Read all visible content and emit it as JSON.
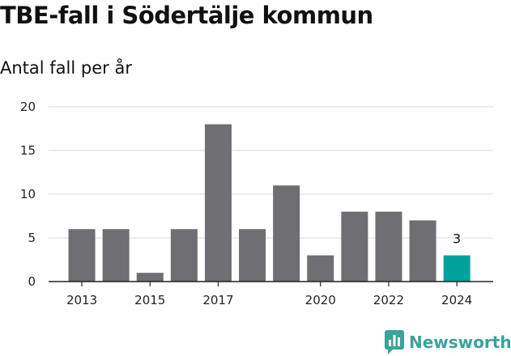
{
  "title": "TBE-fall i Södertälje kommun",
  "subtitle": "Antal fall per år",
  "brand": {
    "name": "Newsworthy",
    "icon": "newsworthy-chat-icon",
    "color": "#3aa39a"
  },
  "chart_data": {
    "type": "bar",
    "categories": [
      "2013",
      "2014",
      "2015",
      "2016",
      "2017",
      "2018",
      "2019",
      "2020",
      "2021",
      "2022",
      "2023",
      "2024"
    ],
    "values": [
      6,
      6,
      1,
      6,
      18,
      6,
      11,
      3,
      8,
      8,
      7,
      3
    ],
    "x_tick_labels": [
      "2013",
      "2015",
      "2017",
      "2020",
      "2022",
      "2024"
    ],
    "y_ticks": [
      0,
      5,
      10,
      15,
      20
    ],
    "ylim": [
      0,
      20
    ],
    "grid": true,
    "bar_color": "#6f6e73",
    "highlight_color": "#00a19a",
    "highlight_category": "2024",
    "data_labels": [
      {
        "category": "2024",
        "text": "3"
      }
    ]
  }
}
